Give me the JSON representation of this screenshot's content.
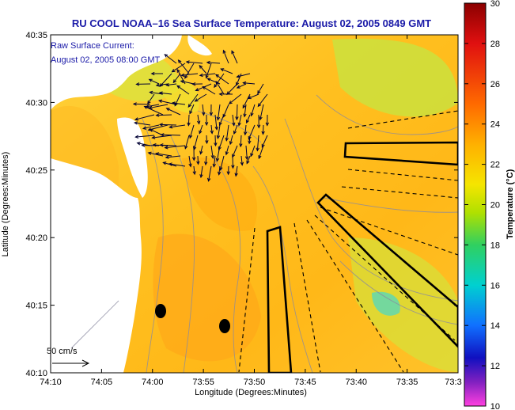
{
  "title": "RU COOL  NOAA–16  Sea Surface Temperature:  August 02, 2005 0849 GMT",
  "legend_note": {
    "line1": "Raw Surface Current:",
    "line2": "August 02, 2005 08:00 GMT"
  },
  "scale": {
    "label": "50 cm/s"
  },
  "axes": {
    "xlabel": "Longitude (Degrees:Minutes)",
    "ylabel": "Latitude (Degrees:Minutes)",
    "xticks": [
      "74:10",
      "74:05",
      "74:00",
      "73:55",
      "73:50",
      "73:45",
      "73:40",
      "73:35",
      "73:3"
    ],
    "yticks": [
      "40:35",
      "40:30",
      "40:25",
      "40:20",
      "40:15",
      "40:10"
    ]
  },
  "colorbar": {
    "label": "Temperature (°C)",
    "ticks": [
      "30",
      "28",
      "26",
      "24",
      "22",
      "20",
      "18",
      "16",
      "14",
      "12",
      "10"
    ],
    "range": [
      10,
      30
    ]
  },
  "colors": {
    "title": "#1a1aa8",
    "land": "#ffffff",
    "sst_base": "#ffc21a",
    "arrows": "#000033"
  }
}
